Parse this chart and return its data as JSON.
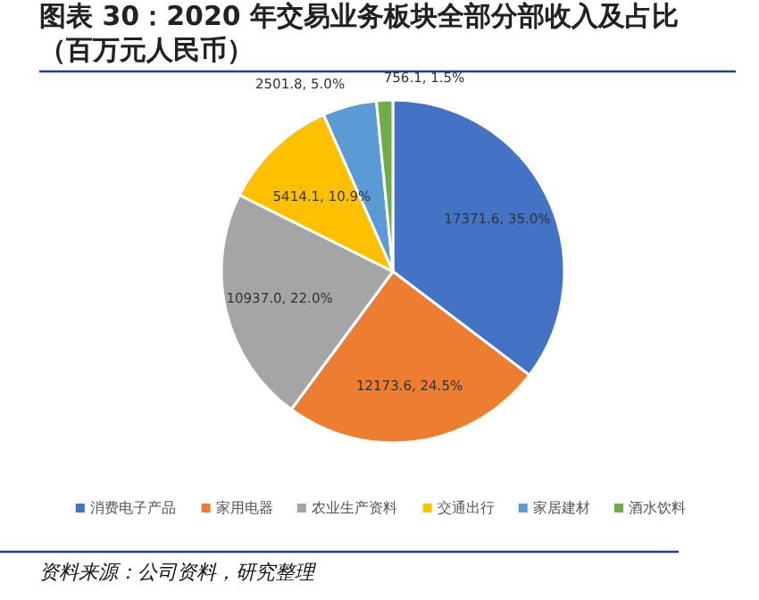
{
  "chart_data": {
    "type": "pie",
    "title": "图表 30：2020 年交易业务板块全部分部收入及占比（百万元人民币）",
    "categories": [
      "消费电子产品",
      "家用电器",
      "农业生产资料",
      "交通出行",
      "家居建材",
      "酒水饮料"
    ],
    "values": [
      17371.6,
      12173.6,
      10937.0,
      5414.1,
      2501.8,
      756.1
    ],
    "colors": [
      "#4472c4",
      "#ed7d31",
      "#a5a5a5",
      "#ffc000",
      "#5b9bd5",
      "#70ad47"
    ],
    "value_labels": [
      "17371.6, 35.0%",
      "12173.6, 24.5%",
      "10937.0, 22.0%",
      "5414.1, 10.9%",
      "2501.8, 5.0%",
      "756.1, 1.5%"
    ],
    "legend": "bottom",
    "annotations": [
      "资料来源：公司资料，研究整理"
    ]
  }
}
